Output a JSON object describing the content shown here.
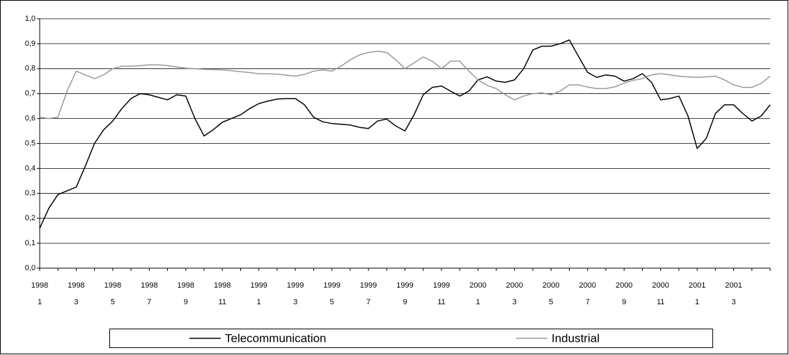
{
  "chart_data": {
    "type": "line",
    "categories": [
      {
        "year": "1998",
        "month": "1"
      },
      null,
      null,
      null,
      {
        "year": "1998",
        "month": "3"
      },
      null,
      null,
      null,
      {
        "year": "1998",
        "month": "5"
      },
      null,
      null,
      null,
      {
        "year": "1998",
        "month": "7"
      },
      null,
      null,
      null,
      {
        "year": "1998",
        "month": "9"
      },
      null,
      null,
      null,
      {
        "year": "1998",
        "month": "11"
      },
      null,
      null,
      null,
      {
        "year": "1999",
        "month": "1"
      },
      null,
      null,
      null,
      {
        "year": "1999",
        "month": "3"
      },
      null,
      null,
      null,
      {
        "year": "1999",
        "month": "5"
      },
      null,
      null,
      null,
      {
        "year": "1999",
        "month": "7"
      },
      null,
      null,
      null,
      {
        "year": "1999",
        "month": "9"
      },
      null,
      null,
      null,
      {
        "year": "1999",
        "month": "11"
      },
      null,
      null,
      null,
      {
        "year": "2000",
        "month": "1"
      },
      null,
      null,
      null,
      {
        "year": "2000",
        "month": "3"
      },
      null,
      null,
      null,
      {
        "year": "2000",
        "month": "5"
      },
      null,
      null,
      null,
      {
        "year": "2000",
        "month": "7"
      },
      null,
      null,
      null,
      {
        "year": "2000",
        "month": "9"
      },
      null,
      null,
      null,
      {
        "year": "2000",
        "month": "11"
      },
      null,
      null,
      null,
      {
        "year": "2001",
        "month": "1"
      },
      null,
      null,
      null,
      {
        "year": "2001",
        "month": "3"
      },
      null,
      null,
      null,
      null
    ],
    "series": [
      {
        "name": "Telecommunication",
        "color": "#000000",
        "values": [
          0.16,
          0.24,
          0.295,
          0.31,
          0.325,
          0.41,
          0.5,
          0.555,
          0.59,
          0.64,
          0.68,
          0.7,
          0.695,
          0.685,
          0.675,
          0.695,
          0.69,
          0.6,
          0.53,
          0.555,
          0.585,
          0.6,
          0.615,
          0.64,
          0.66,
          0.67,
          0.678,
          0.68,
          0.68,
          0.655,
          0.605,
          0.587,
          0.58,
          0.577,
          0.574,
          0.565,
          0.56,
          0.59,
          0.598,
          0.57,
          0.55,
          0.615,
          0.695,
          0.725,
          0.73,
          0.71,
          0.69,
          0.71,
          0.755,
          0.767,
          0.75,
          0.745,
          0.755,
          0.8,
          0.875,
          0.89,
          0.89,
          0.9,
          0.915,
          0.85,
          0.785,
          0.765,
          0.775,
          0.77,
          0.75,
          0.76,
          0.78,
          0.745,
          0.675,
          0.68,
          0.69,
          0.61,
          0.48,
          0.52,
          0.62,
          0.655,
          0.655,
          0.62,
          0.59,
          0.61,
          0.655
        ]
      },
      {
        "name": "Industrial",
        "color": "#999999",
        "values": [
          0.605,
          0.6,
          0.605,
          0.71,
          0.79,
          0.775,
          0.76,
          0.775,
          0.8,
          0.81,
          0.81,
          0.812,
          0.815,
          0.815,
          0.812,
          0.807,
          0.802,
          0.8,
          0.797,
          0.796,
          0.795,
          0.792,
          0.788,
          0.784,
          0.78,
          0.779,
          0.778,
          0.774,
          0.77,
          0.777,
          0.79,
          0.795,
          0.79,
          0.81,
          0.835,
          0.855,
          0.865,
          0.87,
          0.865,
          0.835,
          0.8,
          0.823,
          0.847,
          0.83,
          0.8,
          0.83,
          0.83,
          0.79,
          0.755,
          0.733,
          0.72,
          0.695,
          0.675,
          0.69,
          0.7,
          0.703,
          0.695,
          0.71,
          0.735,
          0.735,
          0.726,
          0.72,
          0.72,
          0.727,
          0.742,
          0.753,
          0.76,
          0.775,
          0.78,
          0.775,
          0.77,
          0.767,
          0.765,
          0.767,
          0.77,
          0.755,
          0.735,
          0.725,
          0.725,
          0.74,
          0.77
        ]
      }
    ],
    "ylim": [
      0,
      1
    ],
    "yticks": [
      {
        "value": 0,
        "label": "0,0"
      },
      {
        "value": 0.1,
        "label": "0,1"
      },
      {
        "value": 0.2,
        "label": "0,2"
      },
      {
        "value": 0.3,
        "label": "0,3"
      },
      {
        "value": 0.4,
        "label": "0,4"
      },
      {
        "value": 0.5,
        "label": "0,5"
      },
      {
        "value": 0.6,
        "label": "0,6"
      },
      {
        "value": 0.7,
        "label": "0,7"
      },
      {
        "value": 0.8,
        "label": "0,8"
      },
      {
        "value": 0.9,
        "label": "0,9"
      },
      {
        "value": 1,
        "label": "1,0"
      }
    ],
    "grid": true,
    "legend": "bottom"
  }
}
